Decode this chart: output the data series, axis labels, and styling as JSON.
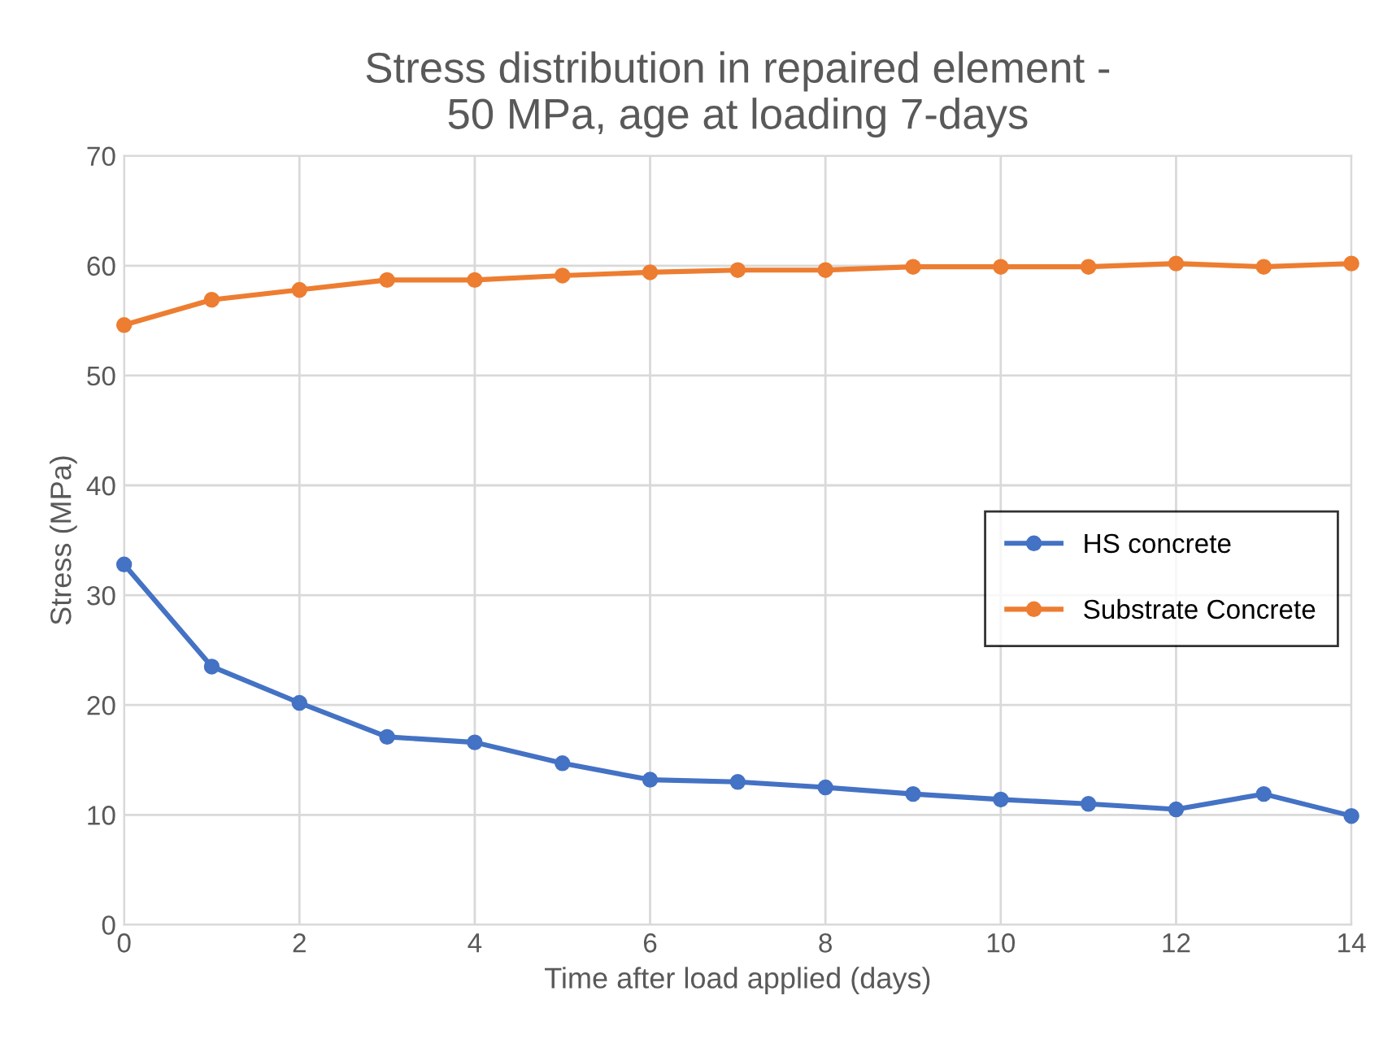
{
  "chart_data": {
    "type": "line",
    "title": "Stress distribution in repaired element -\n50 MPa, age at loading 7-days",
    "xlabel": "Time after load applied (days)",
    "ylabel": "Stress (MPa)",
    "x": [
      0,
      1,
      2,
      3,
      4,
      5,
      6,
      7,
      8,
      9,
      10,
      11,
      12,
      13,
      14
    ],
    "series": [
      {
        "name": "HS concrete",
        "color": "#4472c4",
        "values": [
          32.8,
          23.5,
          20.2,
          17.1,
          16.6,
          14.7,
          13.2,
          13.0,
          12.5,
          11.9,
          11.4,
          11.0,
          10.5,
          11.9,
          9.9
        ]
      },
      {
        "name": "Substrate Concrete",
        "color": "#ed7d31",
        "values": [
          54.6,
          56.9,
          57.8,
          58.7,
          58.7,
          59.1,
          59.4,
          59.6,
          59.6,
          59.9,
          59.9,
          59.9,
          60.2,
          59.9,
          60.2
        ]
      }
    ],
    "xlim": [
      0,
      14
    ],
    "xticks": [
      0,
      2,
      4,
      6,
      8,
      10,
      12,
      14
    ],
    "ylim": [
      0,
      70
    ],
    "yticks": [
      0,
      10,
      20,
      30,
      40,
      50,
      60,
      70
    ],
    "grid": true,
    "legend": "right",
    "marker": "circle",
    "line_style": "solid"
  }
}
